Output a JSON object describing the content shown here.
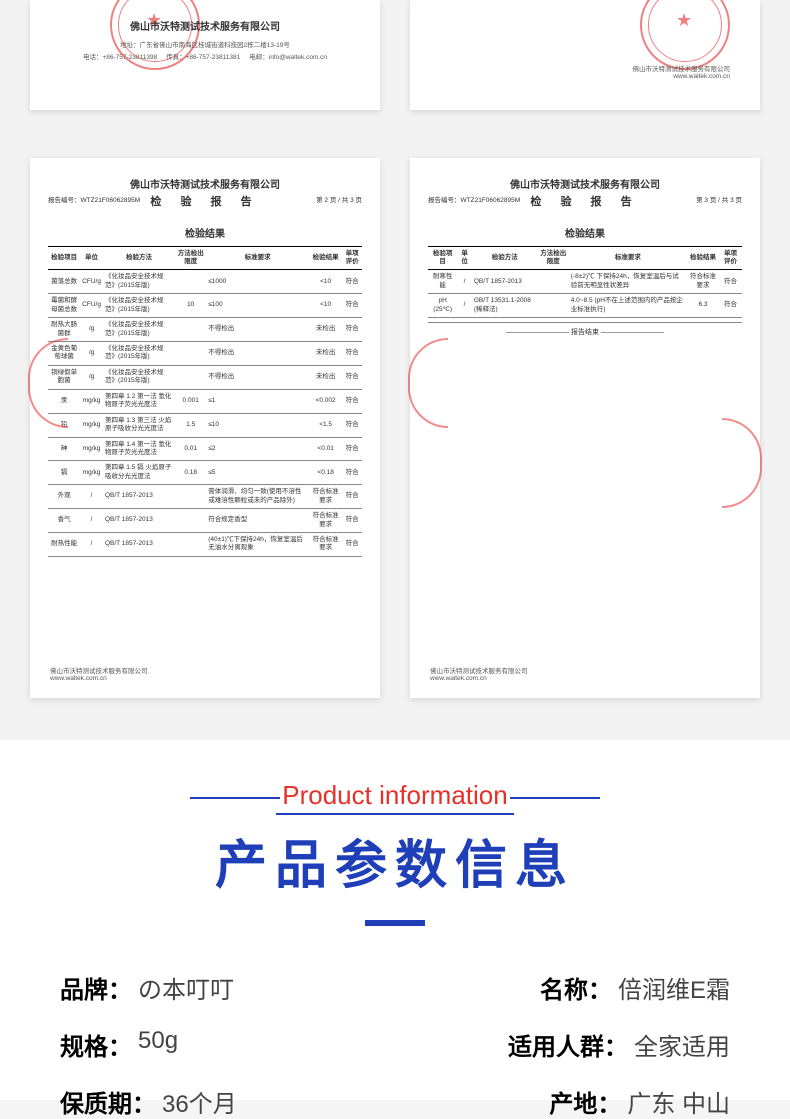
{
  "docs": {
    "company": "佛山市沃特测试技术服务有限公司",
    "report_title": "检 验 报 告",
    "section_title": "检验结果",
    "report_no_label": "报告编号：",
    "report_no": "WTZ21F06062895M",
    "footer_company": "佛山市沃特测试技术服务有限公司",
    "footer_url": "www.waltek.com.cn",
    "top_left": {
      "company_alt": "佛山市沃特测试技术服务有限公司",
      "address": "地址：广东省佛山市南海区桂城街道科技园2栋二楼13-19号",
      "tel_label": "电话：",
      "tel": "+86-757-23811398",
      "fax_label": "传真：",
      "fax": "+86-757-23811381",
      "email_label": "电邮：",
      "email": "info@waltek.com.cn"
    },
    "page2": {
      "page_no": "第 2 页 / 共 3 页",
      "columns": [
        "检验项目",
        "单位",
        "检验方法",
        "方法检出限度",
        "标准要求",
        "检验结果",
        "单项评价"
      ],
      "rows": [
        [
          "菌落总数",
          "CFU/g",
          "《化妆品安全技术规范》(2015年版)",
          "",
          "≤1000",
          "<10",
          "符合"
        ],
        [
          "霉菌和酵母菌总数",
          "CFU/g",
          "《化妆品安全技术规范》(2015年版)",
          "10",
          "≤100",
          "<10",
          "符合"
        ],
        [
          "耐热大肠菌群",
          "/g",
          "《化妆品安全技术规范》(2015年版)",
          "",
          "不得检出",
          "未检出",
          "符合"
        ],
        [
          "金黄色葡萄球菌",
          "/g",
          "《化妆品安全技术规范》(2015年版)",
          "",
          "不得检出",
          "未检出",
          "符合"
        ],
        [
          "铜绿假单胞菌",
          "/g",
          "《化妆品安全技术规范》(2015年版)",
          "",
          "不得检出",
          "未检出",
          "符合"
        ],
        [
          "汞",
          "mg/kg",
          "第四章 1.2 第一法 氢化物原子荧光光度法",
          "0.001",
          "≤1",
          "<0.002",
          "符合"
        ],
        [
          "铅",
          "mg/kg",
          "第四章 1.3 第三法 火焰原子吸收分光光度法",
          "1.5",
          "≤10",
          "<1.5",
          "符合"
        ],
        [
          "砷",
          "mg/kg",
          "第四章 1.4 第一法 氢化物原子荧光光度法",
          "0.01",
          "≤2",
          "<0.01",
          "符合"
        ],
        [
          "镉",
          "mg/kg",
          "第四章 1.5 镉 火焰原子吸收分光光度法",
          "0.18",
          "≤5",
          "<0.18",
          "符合"
        ],
        [
          "外观",
          "/",
          "QB/T 1857-2013",
          "",
          "膏体润滑、均匀一致(使用不溶性或难溶性颗粒或未的产品除外)",
          "符合标准要求",
          "符合"
        ],
        [
          "香气",
          "/",
          "QB/T 1857-2013",
          "",
          "符合规定香型",
          "符合标准要求",
          "符合"
        ],
        [
          "耐热性能",
          "/",
          "QB/T 1857-2013",
          "",
          "(40±1)℃下保持24h，恢复室温后无油水分离现象",
          "符合标准要求",
          "符合"
        ]
      ]
    },
    "page3": {
      "page_no": "第 3 页 / 共 3 页",
      "columns": [
        "检验项目",
        "单位",
        "检验方法",
        "方法检出限度",
        "标准要求",
        "检验结果",
        "单项评价"
      ],
      "rows": [
        [
          "耐寒性能",
          "/",
          "QB/T 1857-2013",
          "",
          "(-8±2)℃ 下保持24h，恢复室温后与试验前无明显性状差异",
          "符合标准要求",
          "符合"
        ],
        [
          "pH (25℃)",
          "/",
          "GB/T 13531.1-2008 (稀释法)",
          "",
          "4.0~8.5 (pH不在上述范围内的产品按企业标准执行)",
          "6.3",
          "符合"
        ]
      ],
      "report_end": "————————— 报告结束 —————————"
    }
  },
  "product_info": {
    "title_en": "Product information",
    "title_cn": "产品参数信息",
    "specs": [
      {
        "label": "品牌：",
        "value": "の本叮叮"
      },
      {
        "label": "名称：",
        "value": "倍润维E霜"
      },
      {
        "label": "规格：",
        "value": "50g"
      },
      {
        "label": "适用人群：",
        "value": "全家适用"
      },
      {
        "label": "保质期：",
        "value": "36个月"
      },
      {
        "label": "产地：",
        "value": "广东  中山"
      }
    ]
  },
  "colors": {
    "bg": "#f5f5f5",
    "doc_bg": "#ffffff",
    "stamp": "#e62d2d",
    "title_en": "#e6312a",
    "title_cn": "#1e3fb8",
    "spec_label": "#000000",
    "spec_value": "#444444"
  }
}
